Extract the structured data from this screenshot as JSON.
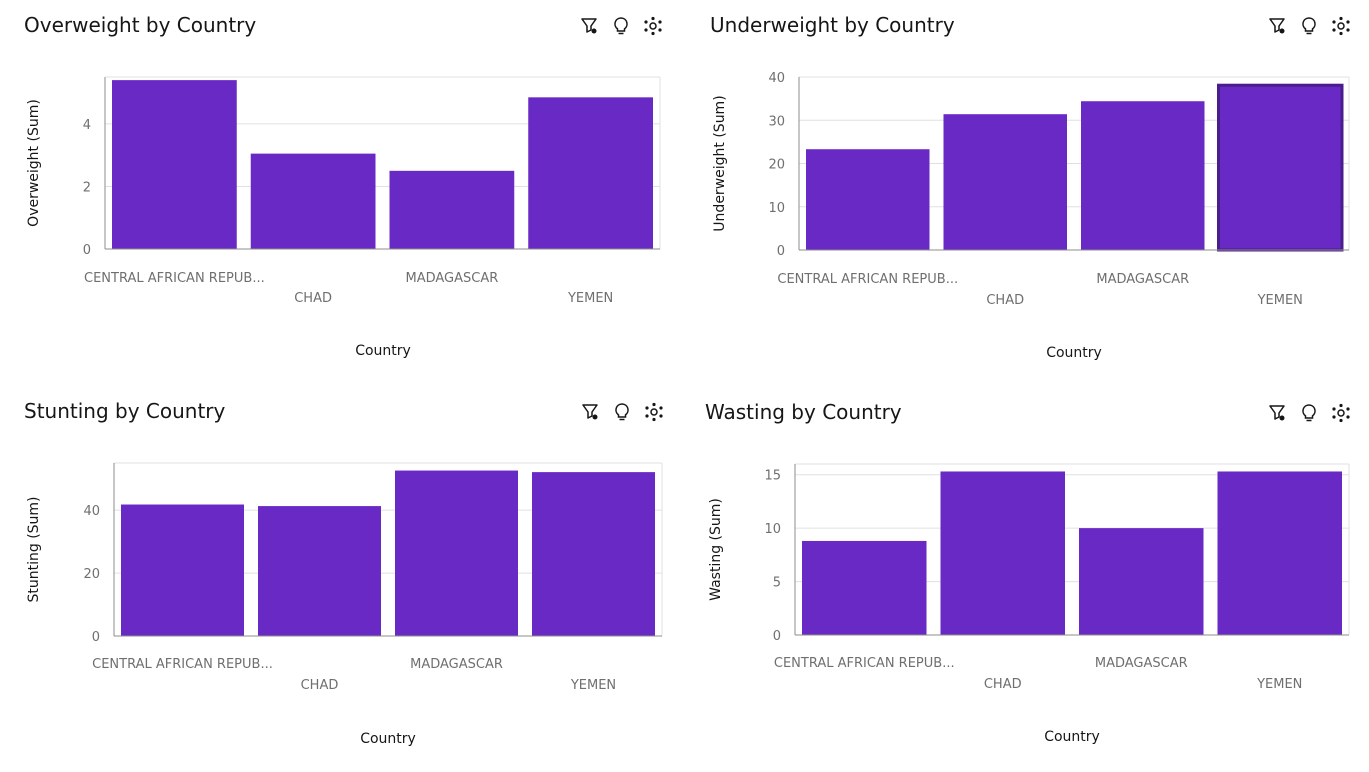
{
  "colors": {
    "bar": "#6929c4",
    "bar_highlight_stroke": "#491d8b",
    "grid": "#e0e0e0",
    "axis": "#8d8d8d"
  },
  "toolbar": {
    "icons": [
      "filter-icon",
      "lightbulb-icon",
      "network-icon"
    ]
  },
  "charts": [
    {
      "id": "overweight",
      "title": "Overweight by Country",
      "chart_data": {
        "type": "bar",
        "title": "Overweight by Country",
        "categories": [
          "CENTRAL AFRICAN REPUB...",
          "CHAD",
          "MADAGASCAR",
          "YEMEN"
        ],
        "values": [
          5.4,
          3.05,
          2.5,
          4.85
        ],
        "xlabel": "Country",
        "ylabel": "Overweight (Sum)",
        "ylim": [
          0,
          5.5
        ],
        "yticks": [
          0,
          2,
          4
        ],
        "grid": true,
        "highlight_index": null
      }
    },
    {
      "id": "underweight",
      "title": "Underweight by Country",
      "chart_data": {
        "type": "bar",
        "title": "Underweight by Country",
        "categories": [
          "CENTRAL AFRICAN REPUB...",
          "CHAD",
          "MADAGASCAR",
          "YEMEN"
        ],
        "values": [
          23.3,
          31.4,
          34.4,
          38.1
        ],
        "xlabel": "Country",
        "ylabel": "Underweight (Sum)",
        "ylim": [
          0,
          40
        ],
        "yticks": [
          0,
          10,
          20,
          30,
          40
        ],
        "grid": true,
        "highlight_index": 3
      }
    },
    {
      "id": "stunting",
      "title": "Stunting by Country",
      "chart_data": {
        "type": "bar",
        "title": "Stunting by Country",
        "categories": [
          "CENTRAL AFRICAN REPUB...",
          "CHAD",
          "MADAGASCAR",
          "YEMEN"
        ],
        "values": [
          41.8,
          41.3,
          52.6,
          52.1
        ],
        "xlabel": "Country",
        "ylabel": "Stunting (Sum)",
        "ylim": [
          0,
          55
        ],
        "yticks": [
          0,
          20,
          40
        ],
        "grid": true,
        "highlight_index": null
      }
    },
    {
      "id": "wasting",
      "title": "Wasting by Country",
      "chart_data": {
        "type": "bar",
        "title": "Wasting by Country",
        "categories": [
          "CENTRAL AFRICAN REPUB...",
          "CHAD",
          "MADAGASCAR",
          "YEMEN"
        ],
        "values": [
          8.8,
          15.3,
          10.0,
          15.3
        ],
        "xlabel": "Country",
        "ylabel": "Wasting (Sum)",
        "ylim": [
          0,
          16
        ],
        "yticks": [
          0,
          5,
          10,
          15
        ],
        "grid": true,
        "highlight_index": null
      }
    }
  ]
}
